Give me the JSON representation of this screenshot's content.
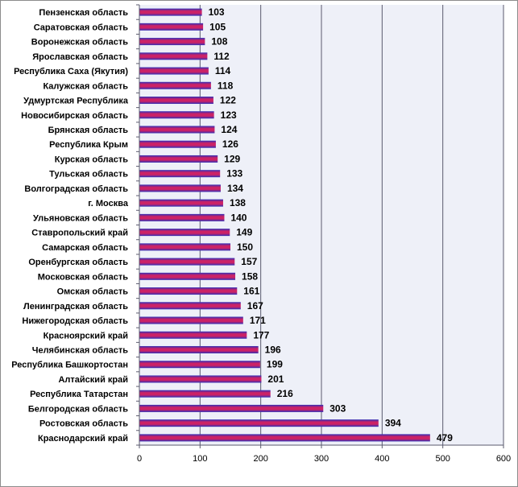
{
  "chart_data": {
    "type": "bar",
    "orientation": "horizontal",
    "categories": [
      "Пензенская  область",
      "Саратовская  область",
      "Воронежская  область",
      "Ярославская  область",
      "Республика  Саха (Якутия)",
      "Калужская  область",
      "Удмуртская  Республика",
      "Новосибирская  область",
      "Брянская  область",
      "Республика  Крым",
      "Курская  область",
      "Тульская  область",
      "Волгоградская  область",
      "г. Москва",
      "Ульяновская  область",
      "Ставропольский  край",
      "Самарская  область",
      "Оренбургская  область",
      "Московская  область",
      "Омская  область",
      "Ленинградская  область",
      "Нижегородская  область",
      "Красноярский  край",
      "Челябинская  область",
      "Республика  Башкортостан",
      "Алтайский  край",
      "Республика  Татарстан",
      "Белгородская  область",
      "Ростовская  область",
      "Краснодарский  край"
    ],
    "values": [
      103,
      105,
      108,
      112,
      114,
      118,
      122,
      123,
      124,
      126,
      129,
      133,
      134,
      138,
      140,
      149,
      150,
      157,
      158,
      161,
      167,
      171,
      177,
      196,
      199,
      201,
      216,
      303,
      394,
      479
    ],
    "xlim": [
      0,
      600
    ],
    "x_ticks": [
      0,
      100,
      200,
      300,
      400,
      500,
      600
    ],
    "grid": "vertical",
    "legend": "none",
    "colors": {
      "bar_top": "#2e2eb8",
      "bar_bottom": "#cc2266",
      "plot_bg": "#eef0f8",
      "grid": "#5a5a6e",
      "axis": "#5a5a6e"
    }
  }
}
